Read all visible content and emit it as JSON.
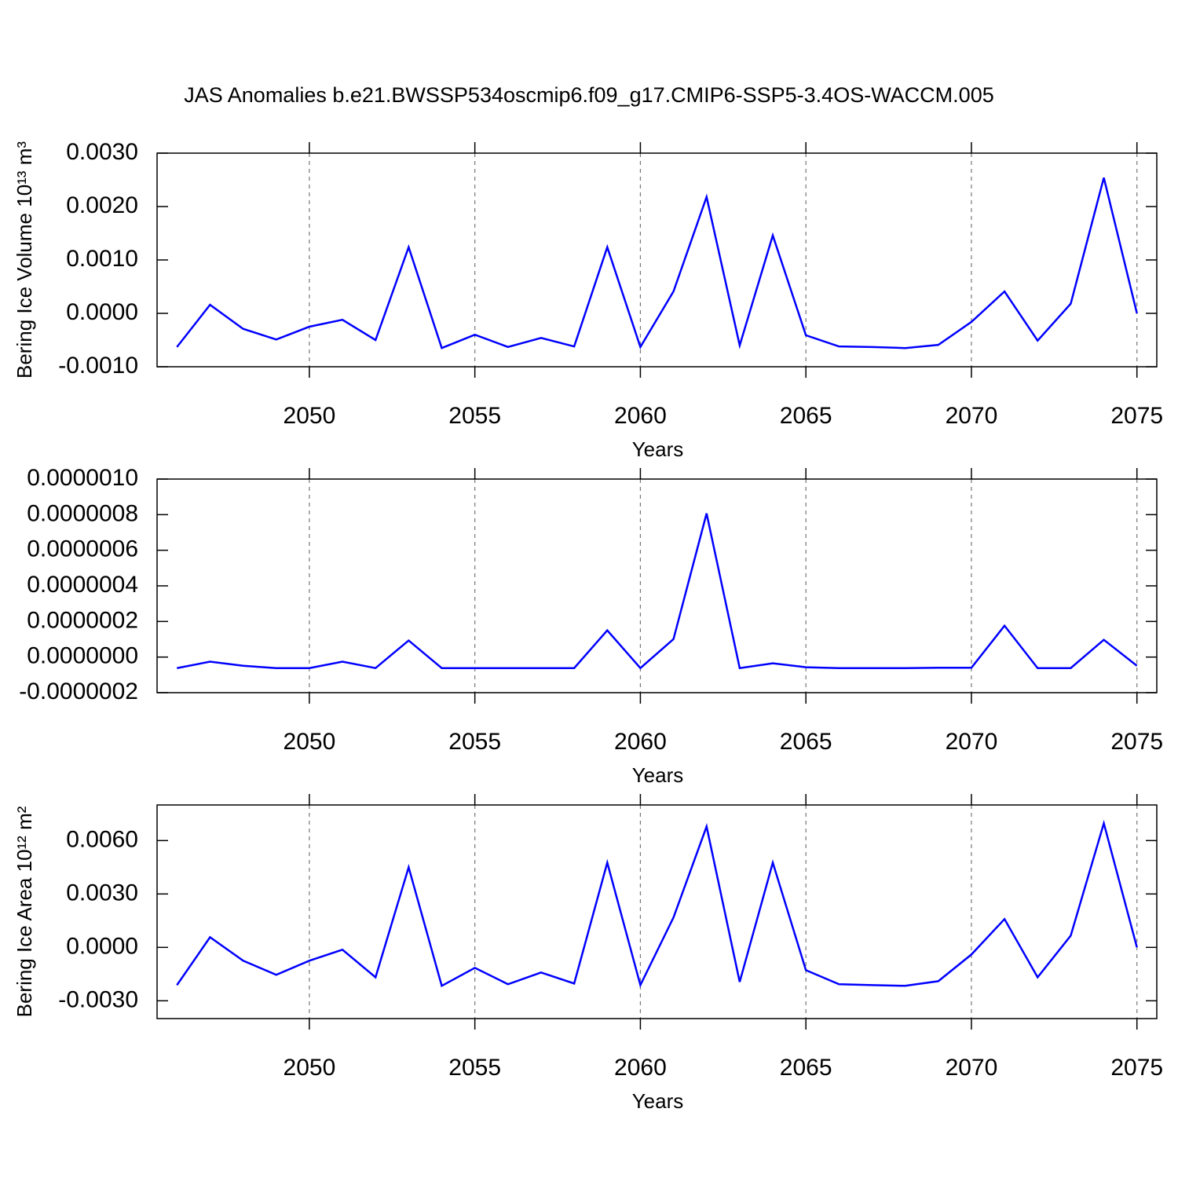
{
  "title": "JAS Anomalies b.e21.BWSSP534oscmip6.f09_g17.CMIP6-SSP5-3.4OS-WACCM.005",
  "chart_data": [
    {
      "type": "line",
      "ylabel": "Bering Ice Volume 10¹³ m³",
      "xlabel": "Years",
      "x": [
        2046,
        2047,
        2048,
        2049,
        2050,
        2051,
        2052,
        2053,
        2054,
        2055,
        2056,
        2057,
        2058,
        2059,
        2060,
        2061,
        2062,
        2063,
        2064,
        2065,
        2066,
        2067,
        2068,
        2069,
        2070,
        2071,
        2072,
        2073,
        2074,
        2075
      ],
      "series": [
        {
          "color": "#0000ff",
          "values": [
            -0.00063,
            0.00016,
            -0.00029,
            -0.00049,
            -0.00025,
            -0.00012,
            -0.0005,
            0.00124,
            -0.00065,
            -0.0004,
            -0.00063,
            -0.00046,
            -0.00062,
            0.00124,
            -0.00063,
            0.00041,
            0.00218,
            -0.0006,
            0.00146,
            -0.00041,
            -0.00062,
            -0.00063,
            -0.00065,
            -0.00059,
            -0.00016,
            0.00041,
            -0.00051,
            0.00018,
            0.00254,
            0.0
          ]
        }
      ],
      "xlim": [
        2045.4,
        2075.6
      ],
      "xticks": [
        2050,
        2055,
        2060,
        2065,
        2070,
        2075
      ],
      "ylim": [
        -0.001,
        0.003
      ],
      "yticks": [
        {
          "value": -0.001,
          "label": "-0.0010"
        },
        {
          "value": 0,
          "label": "0.0000"
        },
        {
          "value": 0.001,
          "label": "0.0010"
        },
        {
          "value": 0.002,
          "label": "0.0020"
        },
        {
          "value": 0.003,
          "label": "0.0030"
        }
      ],
      "grid": true
    },
    {
      "type": "line",
      "xlabel": "Years",
      "x": [
        2046,
        2047,
        2048,
        2049,
        2050,
        2051,
        2052,
        2053,
        2054,
        2055,
        2056,
        2057,
        2058,
        2059,
        2060,
        2061,
        2062,
        2063,
        2064,
        2065,
        2066,
        2067,
        2068,
        2069,
        2070,
        2071,
        2072,
        2073,
        2074,
        2075
      ],
      "series": [
        {
          "color": "#0000ff",
          "values": [
            -6.2e-08,
            -2.6e-08,
            -4.9e-08,
            -6.2e-08,
            -6.2e-08,
            -2.6e-08,
            -6.2e-08,
            9.3e-08,
            -6.2e-08,
            -6.2e-08,
            -6.2e-08,
            -6.2e-08,
            -6.2e-08,
            1.5e-07,
            -6.2e-08,
            1.01e-07,
            8.07e-07,
            -6.2e-08,
            -3.5e-08,
            -5.7e-08,
            -6.2e-08,
            -6.2e-08,
            -6.2e-08,
            -6e-08,
            -6e-08,
            1.76e-07,
            -6.2e-08,
            -6.2e-08,
            9.7e-08,
            -4.9e-08
          ]
        }
      ],
      "xlim": [
        2045.4,
        2075.6
      ],
      "xticks": [
        2050,
        2055,
        2060,
        2065,
        2070,
        2075
      ],
      "ylim": [
        -2e-07,
        1e-06
      ],
      "yticks": [
        {
          "value": -2e-07,
          "label": "-0.0000002"
        },
        {
          "value": 0,
          "label": "0.0000000"
        },
        {
          "value": 2e-07,
          "label": "0.0000002"
        },
        {
          "value": 4e-07,
          "label": "0.0000004"
        },
        {
          "value": 6e-07,
          "label": "0.0000006"
        },
        {
          "value": 8e-07,
          "label": "0.0000008"
        },
        {
          "value": 1e-06,
          "label": "0.0000010"
        }
      ],
      "grid": true
    },
    {
      "type": "line",
      "ylabel": "Bering Ice Area 10¹² m²",
      "xlabel": "Years",
      "x": [
        2046,
        2047,
        2048,
        2049,
        2050,
        2051,
        2052,
        2053,
        2054,
        2055,
        2056,
        2057,
        2058,
        2059,
        2060,
        2061,
        2062,
        2063,
        2064,
        2065,
        2066,
        2067,
        2068,
        2069,
        2070,
        2071,
        2072,
        2073,
        2074,
        2075
      ],
      "series": [
        {
          "color": "#0000ff",
          "values": [
            -0.00212,
            0.00057,
            -0.00075,
            -0.00154,
            -0.00075,
            -0.00013,
            -0.00168,
            0.0045,
            -0.00216,
            -0.00115,
            -0.00207,
            -0.00141,
            -0.00203,
            0.00476,
            -0.00212,
            0.00168,
            0.00679,
            -0.00194,
            0.00476,
            -0.00128,
            -0.00207,
            -0.00212,
            -0.00216,
            -0.0019,
            -0.0004,
            0.00159,
            -0.00168,
            0.00066,
            0.00697,
            0.0
          ]
        }
      ],
      "xlim": [
        2045.4,
        2075.6
      ],
      "xticks": [
        2050,
        2055,
        2060,
        2065,
        2070,
        2075
      ],
      "ylim": [
        -0.004,
        0.008
      ],
      "yticks": [
        {
          "value": -0.003,
          "label": "-0.0030"
        },
        {
          "value": 0,
          "label": "0.0000"
        },
        {
          "value": 0.003,
          "label": "0.0030"
        },
        {
          "value": 0.006,
          "label": "0.0060"
        }
      ],
      "grid": true
    }
  ]
}
